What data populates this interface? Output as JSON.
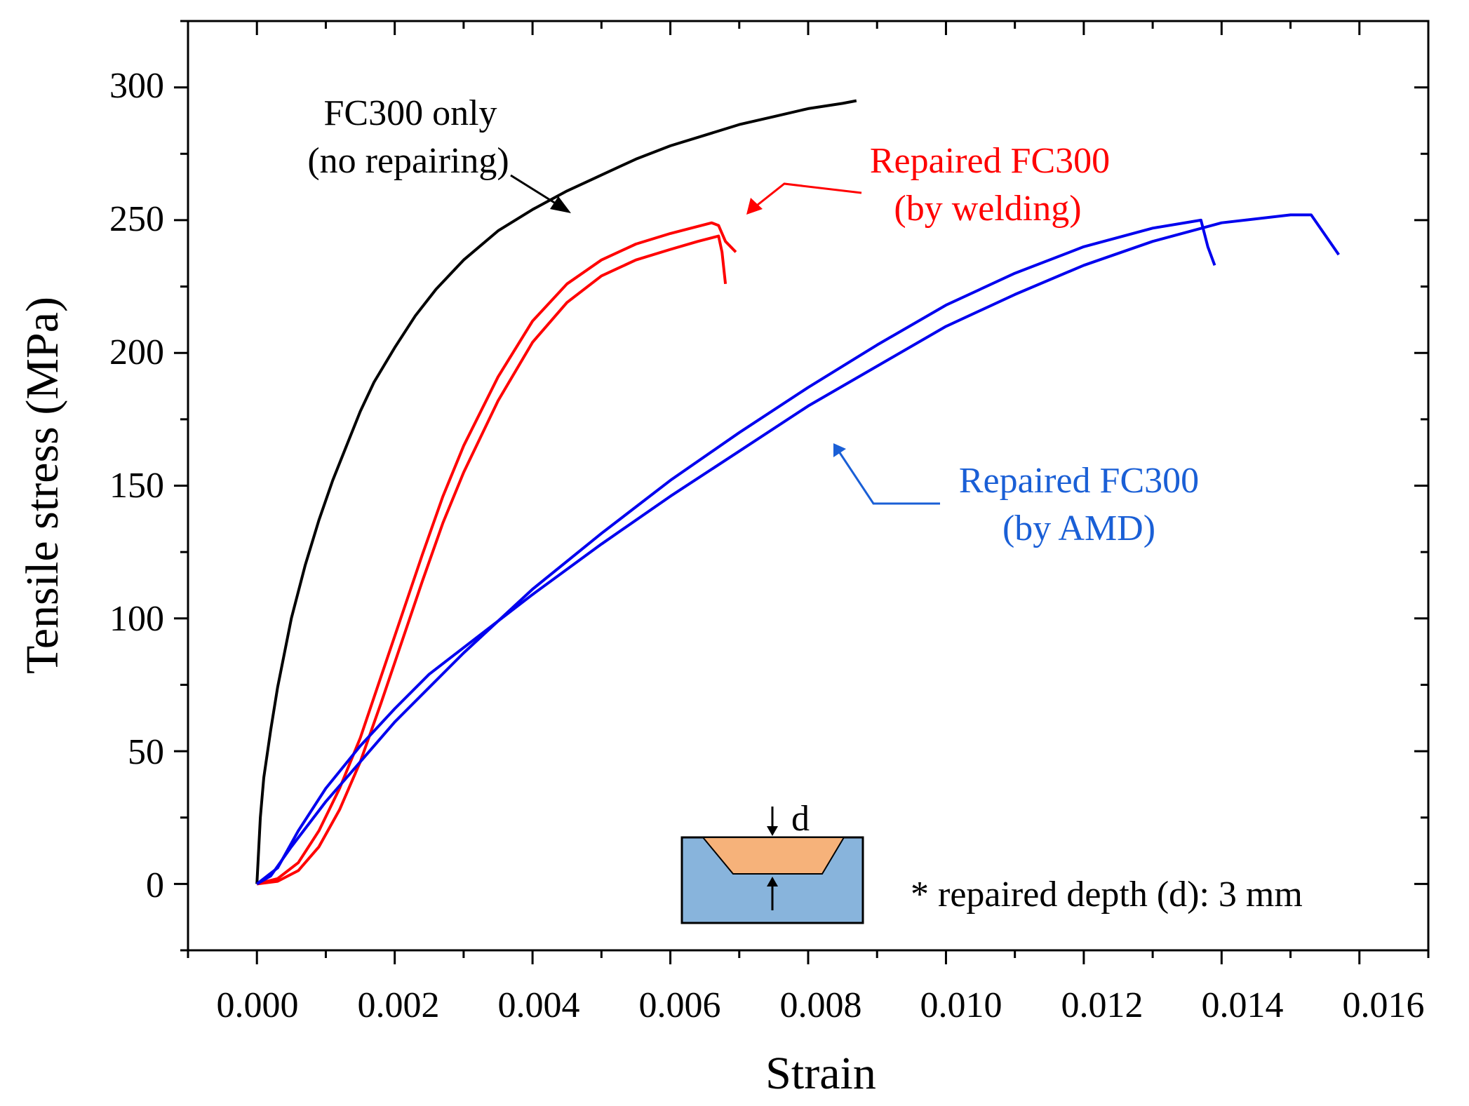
{
  "chart_data": {
    "type": "line",
    "title": "",
    "xlabel": "Strain",
    "ylabel": "Tensile stress (MPa)",
    "xlim": [
      -0.001,
      0.017
    ],
    "ylim": [
      -25,
      325
    ],
    "x_ticks": [
      "0.000",
      "0.002",
      "0.004",
      "0.006",
      "0.008",
      "0.010",
      "0.012",
      "0.014",
      "0.016"
    ],
    "y_ticks": [
      "0",
      "50",
      "100",
      "150",
      "200",
      "250",
      "300"
    ],
    "grid": false,
    "series": [
      {
        "name": "FC300 only (no repairing)",
        "color": "#000000",
        "points": [
          [
            0,
            0
          ],
          [
            5e-05,
            25
          ],
          [
            0.0001,
            40
          ],
          [
            0.0002,
            58
          ],
          [
            0.0003,
            74
          ],
          [
            0.0005,
            100
          ],
          [
            0.0007,
            120
          ],
          [
            0.0009,
            137
          ],
          [
            0.0011,
            152
          ],
          [
            0.0013,
            165
          ],
          [
            0.0015,
            178
          ],
          [
            0.0017,
            189
          ],
          [
            0.002,
            202
          ],
          [
            0.0023,
            214
          ],
          [
            0.0026,
            224
          ],
          [
            0.003,
            235
          ],
          [
            0.0035,
            246
          ],
          [
            0.004,
            254
          ],
          [
            0.0045,
            261
          ],
          [
            0.005,
            267
          ],
          [
            0.0055,
            273
          ],
          [
            0.006,
            278
          ],
          [
            0.0065,
            282
          ],
          [
            0.007,
            286
          ],
          [
            0.0075,
            289
          ],
          [
            0.008,
            292
          ],
          [
            0.0085,
            294
          ],
          [
            0.0087,
            295
          ]
        ]
      },
      {
        "name": "Repaired FC300 (by welding) - specimen 1",
        "color": "#ff0000",
        "points": [
          [
            0,
            0
          ],
          [
            0.0003,
            2
          ],
          [
            0.0006,
            8
          ],
          [
            0.0009,
            20
          ],
          [
            0.0012,
            36
          ],
          [
            0.0015,
            55
          ],
          [
            0.0018,
            78
          ],
          [
            0.0021,
            101
          ],
          [
            0.0024,
            124
          ],
          [
            0.0027,
            146
          ],
          [
            0.003,
            165
          ],
          [
            0.0035,
            191
          ],
          [
            0.004,
            212
          ],
          [
            0.0045,
            226
          ],
          [
            0.005,
            235
          ],
          [
            0.0055,
            241
          ],
          [
            0.006,
            245
          ],
          [
            0.0063,
            247
          ],
          [
            0.0066,
            249
          ],
          [
            0.0067,
            248
          ],
          [
            0.0068,
            242
          ],
          [
            0.00695,
            238
          ]
        ]
      },
      {
        "name": "Repaired FC300 (by welding) - specimen 2",
        "color": "#ff0000",
        "points": [
          [
            0,
            0
          ],
          [
            0.0003,
            1
          ],
          [
            0.0006,
            5
          ],
          [
            0.0009,
            14
          ],
          [
            0.0012,
            28
          ],
          [
            0.0015,
            46
          ],
          [
            0.0018,
            68
          ],
          [
            0.0021,
            91
          ],
          [
            0.0024,
            114
          ],
          [
            0.0027,
            136
          ],
          [
            0.003,
            155
          ],
          [
            0.0035,
            182
          ],
          [
            0.004,
            204
          ],
          [
            0.0045,
            219
          ],
          [
            0.005,
            229
          ],
          [
            0.0055,
            235
          ],
          [
            0.006,
            239
          ],
          [
            0.0064,
            242
          ],
          [
            0.0067,
            244
          ],
          [
            0.00675,
            238
          ],
          [
            0.0068,
            226
          ]
        ]
      },
      {
        "name": "Repaired FC300 (by AMD) - specimen 1",
        "color": "#0000ee",
        "points": [
          [
            0,
            0
          ],
          [
            0.0003,
            6
          ],
          [
            0.0006,
            20
          ],
          [
            0.001,
            36
          ],
          [
            0.0015,
            52
          ],
          [
            0.002,
            66
          ],
          [
            0.0025,
            79
          ],
          [
            0.003,
            89
          ],
          [
            0.004,
            109
          ],
          [
            0.005,
            128
          ],
          [
            0.006,
            146
          ],
          [
            0.007,
            163
          ],
          [
            0.008,
            180
          ],
          [
            0.009,
            195
          ],
          [
            0.01,
            210
          ],
          [
            0.011,
            222
          ],
          [
            0.012,
            233
          ],
          [
            0.013,
            242
          ],
          [
            0.014,
            249
          ],
          [
            0.015,
            252
          ],
          [
            0.0153,
            252
          ],
          [
            0.0157,
            237
          ]
        ]
      },
      {
        "name": "Repaired FC300 (by AMD) - specimen 2",
        "color": "#0000ee",
        "points": [
          [
            0,
            0
          ],
          [
            0.0002,
            3
          ],
          [
            0.0005,
            14
          ],
          [
            0.001,
            31
          ],
          [
            0.0015,
            46
          ],
          [
            0.002,
            61
          ],
          [
            0.0025,
            74
          ],
          [
            0.003,
            87
          ],
          [
            0.004,
            111
          ],
          [
            0.005,
            132
          ],
          [
            0.006,
            152
          ],
          [
            0.007,
            170
          ],
          [
            0.008,
            187
          ],
          [
            0.009,
            203
          ],
          [
            0.01,
            218
          ],
          [
            0.011,
            230
          ],
          [
            0.012,
            240
          ],
          [
            0.013,
            247
          ],
          [
            0.0137,
            250
          ],
          [
            0.0138,
            240
          ],
          [
            0.0139,
            233
          ]
        ]
      }
    ],
    "annotations": [
      {
        "text_lines": [
          "FC300 only",
          "(no repairing)"
        ],
        "color": "#000000"
      },
      {
        "text_lines": [
          "Repaired FC300",
          "(by welding)"
        ],
        "color": "#ff0000"
      },
      {
        "text_lines": [
          "Repaired FC300",
          "(by AMD)"
        ],
        "color": "#1a5fd6"
      }
    ],
    "inset": {
      "label": "d",
      "caption": "* repaired depth (d): 3 mm",
      "substrate_color": "#88b4dc",
      "fill_color": "#f6b27a"
    }
  }
}
